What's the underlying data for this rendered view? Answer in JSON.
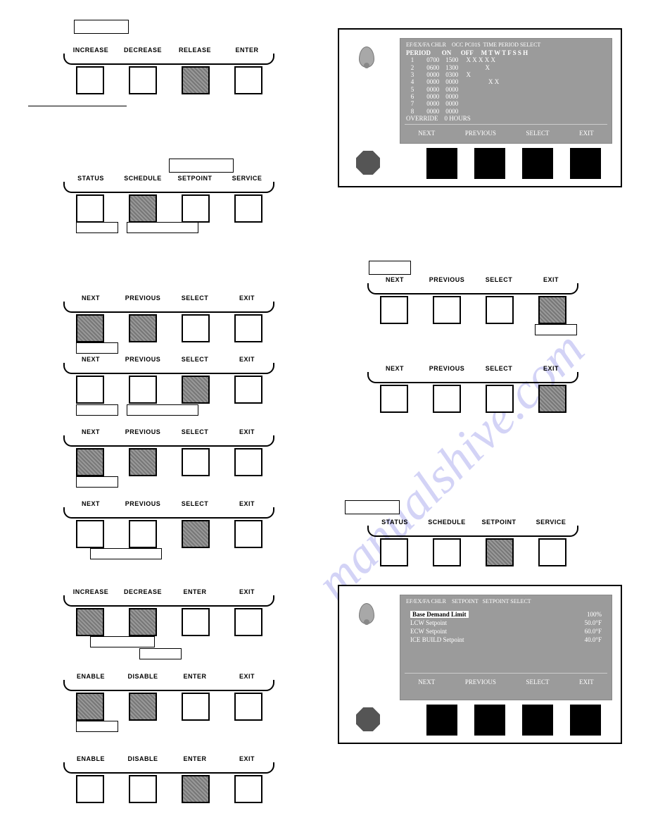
{
  "watermark": "manualshive.com",
  "colors": {
    "screen_bg": "#9b9b9b",
    "screen_fg": "#ffffff",
    "btn_fill": "#888888",
    "panel_btn": "#000000"
  },
  "button_rows": [
    {
      "id": "row1",
      "labels": [
        "INCREASE",
        "DECREASE",
        "RELEASE",
        "ENTER"
      ],
      "filled": [
        false,
        false,
        true,
        false
      ]
    },
    {
      "id": "row2",
      "labels": [
        "STATUS",
        "SCHEDULE",
        "SETPOINT",
        "SERVICE"
      ],
      "filled": [
        false,
        true,
        false,
        false
      ]
    },
    {
      "id": "row3",
      "labels": [
        "NEXT",
        "PREVIOUS",
        "SELECT",
        "EXIT"
      ],
      "filled": [
        true,
        true,
        false,
        false
      ]
    },
    {
      "id": "row4",
      "labels": [
        "NEXT",
        "PREVIOUS",
        "SELECT",
        "EXIT"
      ],
      "filled": [
        false,
        false,
        true,
        false
      ]
    },
    {
      "id": "row5",
      "labels": [
        "NEXT",
        "PREVIOUS",
        "SELECT",
        "EXIT"
      ],
      "filled": [
        true,
        true,
        false,
        false
      ]
    },
    {
      "id": "row6",
      "labels": [
        "NEXT",
        "PREVIOUS",
        "SELECT",
        "EXIT"
      ],
      "filled": [
        false,
        false,
        true,
        false
      ]
    },
    {
      "id": "row7",
      "labels": [
        "INCREASE",
        "DECREASE",
        "ENTER",
        "EXIT"
      ],
      "filled": [
        true,
        true,
        false,
        false
      ]
    },
    {
      "id": "row8",
      "labels": [
        "ENABLE",
        "DISABLE",
        "ENTER",
        "EXIT"
      ],
      "filled": [
        true,
        true,
        false,
        false
      ]
    },
    {
      "id": "row9",
      "labels": [
        "ENABLE",
        "DISABLE",
        "ENTER",
        "EXIT"
      ],
      "filled": [
        false,
        false,
        true,
        false
      ]
    },
    {
      "id": "rowR1",
      "labels": [
        "NEXT",
        "PREVIOUS",
        "SELECT",
        "EXIT"
      ],
      "filled": [
        false,
        false,
        false,
        true
      ]
    },
    {
      "id": "rowR2",
      "labels": [
        "NEXT",
        "PREVIOUS",
        "SELECT",
        "EXIT"
      ],
      "filled": [
        false,
        false,
        false,
        true
      ]
    },
    {
      "id": "rowR3",
      "labels": [
        "STATUS",
        "SCHEDULE",
        "SETPOINT",
        "SERVICE"
      ],
      "filled": [
        false,
        false,
        true,
        false
      ]
    }
  ],
  "panel1": {
    "title": "EF/EX/FA CHLR    OCC PC01S  TIME PERIOD SELECT",
    "header": "PERIOD       ON      OFF     M T W T F S S H",
    "rows": [
      "   1        0700    1500     X X X X X",
      "   2        0600    1300                 X",
      "   3        0000    0300     X",
      "   4        0000    0000                   X X",
      "   5        0000    0000",
      "   6        0000    0000",
      "   7        0000    0000",
      "   8        0000    0000",
      "OVERRIDE    0 HOURS"
    ],
    "footer": [
      "NEXT",
      "PREVIOUS",
      "SELECT",
      "EXIT"
    ]
  },
  "panel2": {
    "title": "EF/EX/FA CHLR    SETPOINT   SETPOINT SELECT",
    "rows": [
      {
        "name": "Base Demand Limit",
        "val": "100%",
        "hl": true
      },
      {
        "name": "LCW Setpoint",
        "val": "50.0°F"
      },
      {
        "name": "ECW Setpoint",
        "val": "60.0°F"
      },
      {
        "name": "ICE BUILD Setpoint",
        "val": "40.0°F"
      }
    ],
    "footer": [
      "NEXT",
      "PREVIOUS",
      "SELECT",
      "EXIT"
    ]
  }
}
